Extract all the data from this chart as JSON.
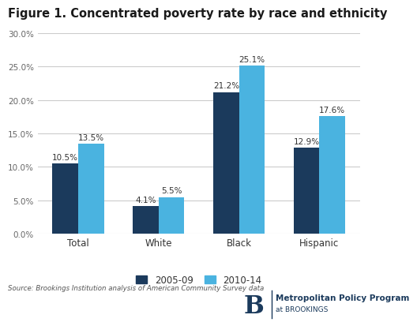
{
  "title": "Figure 1. Concentrated poverty rate by race and ethnicity",
  "categories": [
    "Total",
    "White",
    "Black",
    "Hispanic"
  ],
  "series": [
    {
      "label": "2005-09",
      "values": [
        10.5,
        4.1,
        21.2,
        12.9
      ],
      "color": "#1b3a5c"
    },
    {
      "label": "2010-14",
      "values": [
        13.5,
        5.5,
        25.1,
        17.6
      ],
      "color": "#4ab3e0"
    }
  ],
  "ylim": [
    0,
    30
  ],
  "yticks": [
    0,
    5,
    10,
    15,
    20,
    25,
    30
  ],
  "ytick_labels": [
    "0.0%",
    "5.0%",
    "10.0%",
    "15.0%",
    "20.0%",
    "25.0%",
    "30.0%"
  ],
  "bar_labels": [
    [
      "10.5%",
      "4.1%",
      "21.2%",
      "12.9%"
    ],
    [
      "13.5%",
      "5.5%",
      "25.1%",
      "17.6%"
    ]
  ],
  "source_text": "Source: Brookings Institution analysis of American Community Survey data",
  "background_color": "#ffffff",
  "grid_color": "#cccccc",
  "bar_width": 0.32,
  "font_color": "#333333",
  "title_color": "#1a1a1a",
  "logo_letter": "B",
  "logo_color": "#1b3a5c"
}
